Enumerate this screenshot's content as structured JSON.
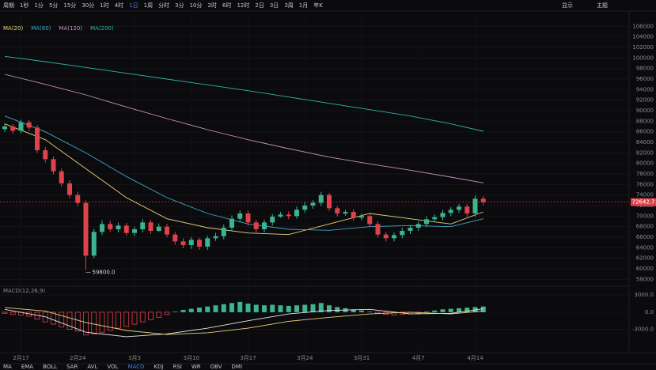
{
  "toolbar": {
    "periods": [
      "周期",
      "1秒",
      "1分",
      "5分",
      "15分",
      "30分",
      "1时",
      "4时",
      "1日",
      "1周",
      "分时",
      "3分",
      "10分",
      "2时",
      "6时",
      "12时",
      "2日",
      "3日",
      "3周",
      "1月",
      "年K"
    ],
    "active": "1日",
    "right": [
      "显示",
      "主题"
    ]
  },
  "indicators": {
    "items": [
      "MA",
      "EMA",
      "BOLL",
      "SAR",
      "AVL",
      "VOL",
      "MACD",
      "KDJ",
      "RSI",
      "WR",
      "OBV",
      "DMI"
    ],
    "active": "MACD"
  },
  "chart_data": [
    {
      "type": "candlestick",
      "categories": [
        null,
        null,
        "2月17",
        null,
        null,
        null,
        null,
        null,
        null,
        "2月24",
        null,
        null,
        null,
        null,
        null,
        null,
        "3月3",
        null,
        null,
        null,
        null,
        null,
        null,
        "3月10",
        null,
        null,
        null,
        null,
        null,
        null,
        "3月17",
        null,
        null,
        null,
        null,
        null,
        null,
        "3月24",
        null,
        null,
        null,
        null,
        null,
        null,
        "3月31",
        null,
        null,
        null,
        null,
        null,
        null,
        "4月7",
        null,
        null,
        null,
        null,
        null,
        null,
        "4月14",
        null
      ],
      "open": [
        86500,
        87000,
        86200,
        87800,
        86800,
        82500,
        80800,
        78500,
        76200,
        74000,
        72500,
        62500,
        67000,
        68500,
        67500,
        68200,
        66800,
        67500,
        68800,
        67200,
        68000,
        66500,
        65200,
        64500,
        65500,
        64200,
        65800,
        66200,
        67800,
        69500,
        70500,
        68800,
        67500,
        68800,
        69900,
        70300,
        70000,
        71200,
        72000,
        72500,
        74000,
        71500,
        70500,
        70800,
        69700,
        70000,
        68500,
        66500,
        65800,
        66400,
        67200,
        67800,
        68500,
        69400,
        69800,
        70600,
        71200,
        71800,
        70500,
        73300
      ],
      "high": [
        87600,
        87500,
        88300,
        88200,
        87300,
        83100,
        81300,
        79000,
        76800,
        74600,
        73000,
        67600,
        69200,
        69100,
        68800,
        68700,
        68000,
        69400,
        69300,
        68600,
        68500,
        67000,
        65800,
        66000,
        65900,
        66300,
        66800,
        68400,
        70100,
        71100,
        71000,
        69300,
        69300,
        70400,
        70800,
        70900,
        71800,
        72600,
        73000,
        74600,
        74400,
        71900,
        71200,
        71300,
        70500,
        70500,
        69000,
        67000,
        66900,
        67800,
        68300,
        69000,
        70000,
        70300,
        71200,
        71700,
        72300,
        72300,
        73900,
        73800
      ],
      "low": [
        86000,
        85600,
        85700,
        86200,
        82000,
        80200,
        77900,
        75600,
        73400,
        71900,
        59800,
        62000,
        66400,
        67000,
        66900,
        66300,
        66200,
        66900,
        66600,
        67000,
        66000,
        64600,
        63900,
        63800,
        63600,
        63600,
        65300,
        65600,
        67200,
        68800,
        68200,
        66900,
        66900,
        68200,
        69700,
        69400,
        69500,
        70600,
        71400,
        71900,
        71000,
        69900,
        70100,
        69100,
        69200,
        67900,
        65900,
        65200,
        65200,
        65800,
        66600,
        67200,
        67900,
        68800,
        69200,
        70000,
        70600,
        69900,
        69900,
        72100
      ],
      "close": [
        87000,
        86200,
        87800,
        86800,
        82500,
        80800,
        78500,
        76200,
        74000,
        72500,
        62500,
        67000,
        68500,
        67500,
        68200,
        66800,
        67500,
        68800,
        67200,
        68000,
        66500,
        65200,
        64500,
        65500,
        64200,
        65800,
        66200,
        67800,
        69500,
        70500,
        68800,
        67500,
        68800,
        69900,
        70300,
        70000,
        71200,
        72000,
        72500,
        74000,
        71500,
        70500,
        70800,
        69700,
        70000,
        68500,
        66500,
        65800,
        66400,
        67200,
        67800,
        68500,
        69400,
        69800,
        70600,
        71200,
        71800,
        70500,
        73300,
        72642.7
      ],
      "last_label": "72642.7",
      "low_label": "59800.0",
      "up_color": "#3bb58f",
      "down_color": "#e0424a",
      "ylim": [
        57000,
        108000
      ],
      "yticks": [
        58000,
        60000,
        62000,
        64000,
        66000,
        68000,
        70000,
        72000,
        74000,
        76000,
        78000,
        80000,
        82000,
        84000,
        86000,
        88000,
        90000,
        92000,
        94000,
        96000,
        98000,
        100000,
        102000,
        104000,
        106000
      ],
      "grid": true,
      "lines": [
        {
          "name": "MA(20)",
          "color": "#e8d27a",
          "x": [
            0,
            5,
            10,
            15,
            20,
            25,
            30,
            35,
            40,
            45,
            50,
            55,
            59
          ],
          "values": [
            87500,
            84500,
            79000,
            73500,
            69500,
            67800,
            66800,
            66500,
            68500,
            70500,
            69500,
            68500,
            70800
          ]
        },
        {
          "name": "MA(60)",
          "color": "#3fa7c9",
          "x": [
            0,
            5,
            10,
            15,
            20,
            25,
            30,
            35,
            40,
            45,
            50,
            55,
            59
          ],
          "values": [
            89000,
            86000,
            82000,
            77500,
            73500,
            70500,
            68500,
            67500,
            67300,
            68000,
            68200,
            68000,
            69500
          ]
        },
        {
          "name": "MA(120)",
          "color": "#c58fbf",
          "x": [
            0,
            5,
            10,
            15,
            20,
            25,
            30,
            35,
            40,
            45,
            50,
            55,
            59
          ],
          "values": [
            96900,
            95000,
            93000,
            90700,
            88500,
            86400,
            84500,
            82800,
            81200,
            79900,
            78700,
            77400,
            76300
          ]
        },
        {
          "name": "MA(200)",
          "color": "#2bb3a3",
          "x": [
            0,
            5,
            10,
            15,
            20,
            25,
            30,
            35,
            40,
            45,
            50,
            55,
            59
          ],
          "values": [
            100300,
            99300,
            98200,
            97100,
            96000,
            94900,
            93800,
            92600,
            91400,
            90200,
            89000,
            87500,
            86100
          ]
        }
      ]
    },
    {
      "type": "bar",
      "title": "MACD(12,26,9)",
      "values": [
        -200,
        -400,
        -500,
        -700,
        -1200,
        -1700,
        -2100,
        -2600,
        -3000,
        -3300,
        -4000,
        -3800,
        -3500,
        -3200,
        -2800,
        -2500,
        -2100,
        -1700,
        -1300,
        -900,
        -400,
        100,
        400,
        600,
        800,
        1000,
        1200,
        1400,
        1600,
        1800,
        1500,
        1300,
        1200,
        1300,
        1200,
        1100,
        1200,
        1300,
        1400,
        1600,
        1200,
        900,
        700,
        500,
        300,
        100,
        -200,
        -400,
        -500,
        -400,
        -300,
        -200,
        100,
        300,
        500,
        600,
        700,
        800,
        900,
        1000
      ],
      "up_color": "#3bb58f",
      "down_color": "#e0424a",
      "ylim": [
        -5000,
        4000
      ],
      "yticks": [
        {
          "value": -3000,
          "label": "-3000.0"
        },
        {
          "value": 0,
          "label": "0.0"
        },
        {
          "value": 3000,
          "label": "3000.0"
        }
      ],
      "lines": [
        {
          "name": "DIF",
          "color": "#e6e6e6",
          "x": [
            0,
            5,
            10,
            15,
            20,
            25,
            30,
            35,
            40,
            45,
            50,
            55,
            59
          ],
          "values": [
            500,
            -800,
            -3500,
            -4300,
            -3800,
            -2800,
            -1500,
            -300,
            300,
            500,
            -300,
            -200,
            600
          ]
        },
        {
          "name": "DEA",
          "color": "#e8d27a",
          "x": [
            0,
            5,
            10,
            15,
            20,
            25,
            30,
            35,
            40,
            45,
            50,
            55,
            59
          ],
          "values": [
            800,
            200,
            -1800,
            -3200,
            -3900,
            -3600,
            -2800,
            -1600,
            -900,
            -300,
            0,
            -300,
            200
          ]
        }
      ]
    }
  ]
}
